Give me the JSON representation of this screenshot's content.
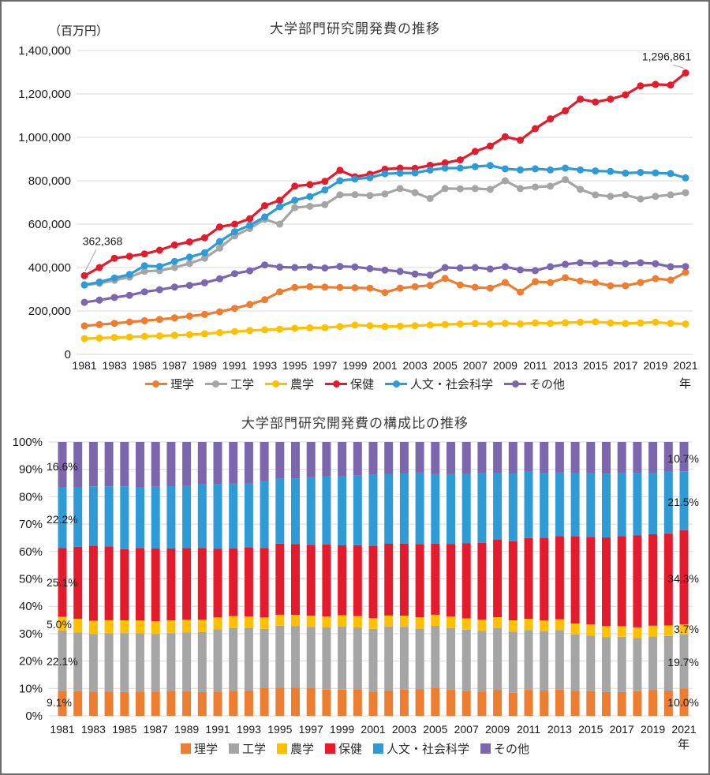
{
  "page": {
    "background": "#ffffff",
    "border_color": "#6b6b6b"
  },
  "years": [
    1981,
    1982,
    1983,
    1984,
    1985,
    1986,
    1987,
    1988,
    1989,
    1990,
    1991,
    1992,
    1993,
    1994,
    1995,
    1996,
    1997,
    1998,
    1999,
    2000,
    2001,
    2002,
    2003,
    2004,
    2005,
    2006,
    2007,
    2008,
    2009,
    2010,
    2011,
    2012,
    2013,
    2014,
    2015,
    2016,
    2017,
    2018,
    2019,
    2020,
    2021
  ],
  "series": [
    {
      "key": "science",
      "label": "理学",
      "color": "#ED7D31",
      "values": [
        131400,
        137000,
        143000,
        149000,
        155000,
        161000,
        168000,
        176000,
        184000,
        196000,
        212000,
        230000,
        252000,
        288000,
        308000,
        312000,
        310000,
        308000,
        307000,
        305000,
        285000,
        305000,
        312000,
        318000,
        350000,
        320000,
        309000,
        305000,
        331000,
        287000,
        335000,
        331000,
        353000,
        338000,
        331000,
        316000,
        316000,
        331000,
        349000,
        342000,
        378100
      ]
    },
    {
      "key": "engineering",
      "label": "工学",
      "color": "#A5A5A5",
      "values": [
        319100,
        327000,
        341000,
        356000,
        383000,
        386000,
        400000,
        419000,
        443000,
        490000,
        546000,
        580000,
        622000,
        600000,
        676000,
        682000,
        690000,
        735000,
        736000,
        732000,
        739000,
        764000,
        745000,
        718000,
        764000,
        763000,
        764000,
        760000,
        800000,
        764000,
        771000,
        775000,
        805000,
        760000,
        735000,
        728000,
        735000,
        716000,
        728000,
        735000,
        744900
      ]
    },
    {
      "key": "agriculture",
      "label": "農学",
      "color": "#FFC000",
      "values": [
        72200,
        75000,
        78000,
        80000,
        83000,
        85000,
        88000,
        91000,
        95000,
        100000,
        105000,
        110000,
        113000,
        116000,
        120000,
        122000,
        123000,
        128000,
        135000,
        132000,
        128000,
        130000,
        132000,
        135000,
        138000,
        140000,
        142000,
        140000,
        143000,
        140000,
        145000,
        143000,
        146000,
        148000,
        150000,
        145000,
        142000,
        145000,
        148000,
        143000,
        139900
      ]
    },
    {
      "key": "health",
      "label": "保健",
      "color": "#E41B2C",
      "values": [
        362368,
        400000,
        443000,
        452000,
        463000,
        480000,
        504000,
        518000,
        537000,
        587000,
        600000,
        625000,
        685000,
        710000,
        775000,
        782000,
        797000,
        848000,
        818000,
        830000,
        853000,
        858000,
        857000,
        871000,
        882000,
        896000,
        935000,
        960000,
        1003000,
        987000,
        1040000,
        1085000,
        1122000,
        1176000,
        1163000,
        1176000,
        1196000,
        1237000,
        1244000,
        1241000,
        1296861
      ]
    },
    {
      "key": "humanities",
      "label": "人文・社会科学",
      "color": "#2E9BD6",
      "values": [
        320500,
        333000,
        352000,
        368000,
        408000,
        405000,
        428000,
        448000,
        468000,
        520000,
        565000,
        595000,
        633000,
        680000,
        710000,
        727000,
        757000,
        800000,
        808000,
        814000,
        832000,
        835000,
        836000,
        849000,
        858000,
        858000,
        865000,
        870000,
        855000,
        850000,
        855000,
        850000,
        858000,
        850000,
        845000,
        843000,
        835000,
        838000,
        836000,
        833000,
        813000
      ]
    },
    {
      "key": "others",
      "label": "その他",
      "color": "#7A67AE",
      "values": [
        239700,
        250000,
        262000,
        272000,
        288000,
        298000,
        310000,
        318000,
        330000,
        348000,
        372000,
        385000,
        412000,
        402000,
        400000,
        402000,
        398000,
        405000,
        403000,
        395000,
        388000,
        382000,
        370000,
        365000,
        400000,
        398000,
        400000,
        393000,
        404000,
        389000,
        386000,
        404000,
        415000,
        422000,
        418000,
        422000,
        418000,
        422000,
        418000,
        404000,
        404600
      ]
    }
  ],
  "chart_data": [
    {
      "type": "line",
      "title": "大学部門研究開発費の推移",
      "unit_label": "（百万円）",
      "xlabel": "年",
      "ylim": [
        0,
        1400000
      ],
      "ytick_step": 200000,
      "ytick_labels": [
        "1,400,000",
        "1,200,000",
        "1,000,000",
        "800,000",
        "600,000",
        "400,000",
        "200,000",
        "0"
      ],
      "xtick_labels": [
        "1981",
        "1983",
        "1985",
        "1987",
        "1989",
        "1991",
        "1993",
        "1995",
        "1997",
        "1999",
        "2001",
        "2003",
        "2005",
        "2007",
        "2009",
        "2011",
        "2013",
        "2015",
        "2017",
        "2019",
        "2021"
      ],
      "grid": "horizontal",
      "legend_position": "bottom",
      "annotations": [
        {
          "text": "362,368",
          "series": "保健",
          "year": 1981
        },
        {
          "text": "1,296,861",
          "series": "保健",
          "year": 2021
        }
      ]
    },
    {
      "type": "stacked-bar-100",
      "title": "大学部門研究開発費の構成比の推移",
      "xlabel": "年",
      "ytick_labels": [
        "100%",
        "90%",
        "80%",
        "70%",
        "60%",
        "50%",
        "40%",
        "30%",
        "20%",
        "10%",
        "0%"
      ],
      "xtick_labels": [
        "1981",
        "1983",
        "1985",
        "1987",
        "1989",
        "1991",
        "1993",
        "1995",
        "1997",
        "1999",
        "2001",
        "2003",
        "2005",
        "2007",
        "2009",
        "2011",
        "2013",
        "2015",
        "2017",
        "2019",
        "2021"
      ],
      "grid": "horizontal",
      "legend_position": "bottom",
      "left_value_labels": [
        {
          "text": "16.6%",
          "series": "その他",
          "pct": 91.0
        },
        {
          "text": "22.2%",
          "series": "人文・社会科学",
          "pct": 71.8
        },
        {
          "text": "25.1%",
          "series": "保健",
          "pct": 48.7
        },
        {
          "text": "5.0%",
          "series": "農学",
          "pct": 33.4
        },
        {
          "text": "22.1%",
          "series": "工学",
          "pct": 19.9
        },
        {
          "text": "9.1%",
          "series": "理学",
          "pct": 4.9
        }
      ],
      "right_value_labels": [
        {
          "text": "10.7%",
          "series": "その他",
          "pct": 93.9
        },
        {
          "text": "21.5%",
          "series": "人文・社会科学",
          "pct": 78.1
        },
        {
          "text": "34.3%",
          "series": "保健",
          "pct": 50.1
        },
        {
          "text": "3.7%",
          "series": "農学",
          "pct": 31.7
        },
        {
          "text": "19.7%",
          "series": "工学",
          "pct": 19.6
        },
        {
          "text": "10.0%",
          "series": "理学",
          "pct": 4.9
        }
      ]
    }
  ]
}
